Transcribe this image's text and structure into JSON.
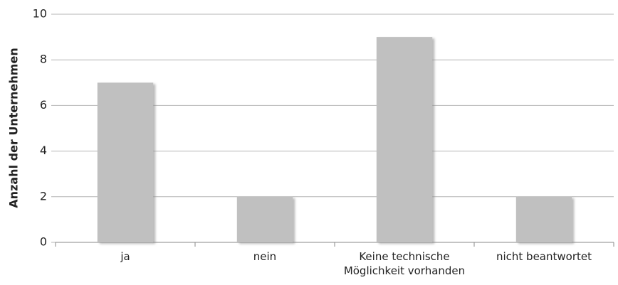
{
  "chart_data": {
    "type": "bar",
    "y_label": "Anzahl der Unternehmen",
    "categories": [
      "ja",
      "nein",
      "Keine technische Möglichkeit vorhanden",
      "nicht beantwortet"
    ],
    "values": [
      7,
      2,
      9,
      2
    ],
    "color": "#c0c0c0",
    "ylim": [
      0,
      10
    ],
    "yticks": [
      0,
      2,
      4,
      6,
      8,
      10
    ],
    "grid": true
  }
}
